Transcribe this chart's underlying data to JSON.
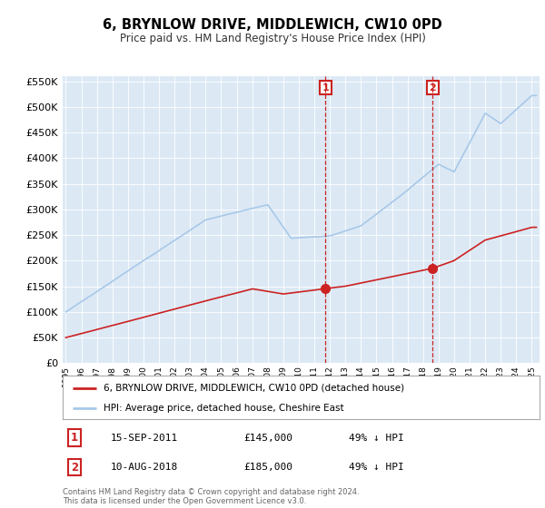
{
  "title": "6, BRYNLOW DRIVE, MIDDLEWICH, CW10 0PD",
  "subtitle": "Price paid vs. HM Land Registry's House Price Index (HPI)",
  "bg_color": "#dce9f5",
  "red_label": "6, BRYNLOW DRIVE, MIDDLEWICH, CW10 0PD (detached house)",
  "blue_label": "HPI: Average price, detached house, Cheshire East",
  "annotation1_date": "15-SEP-2011",
  "annotation1_price": "£145,000",
  "annotation1_hpi": "49% ↓ HPI",
  "annotation1_year": 2011.71,
  "annotation1_value": 145000,
  "annotation2_date": "10-AUG-2018",
  "annotation2_price": "£185,000",
  "annotation2_hpi": "49% ↓ HPI",
  "annotation2_year": 2018.61,
  "annotation2_value": 185000,
  "footer": "Contains HM Land Registry data © Crown copyright and database right 2024.\nThis data is licensed under the Open Government Licence v3.0.",
  "ylim_max": 560000,
  "xlim_start": 1994.8,
  "xlim_end": 2025.5,
  "hpi_color": "#a8c8e8",
  "red_color": "#cc2222"
}
